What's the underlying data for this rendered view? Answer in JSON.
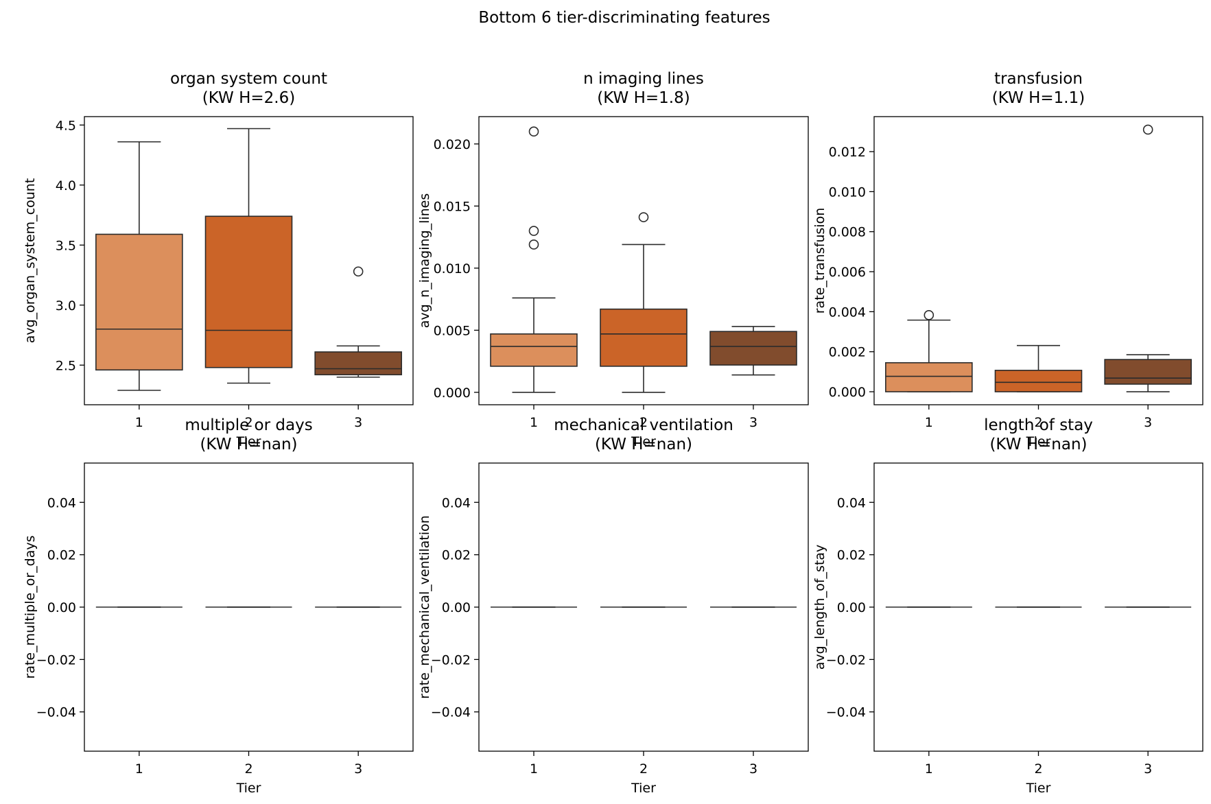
{
  "figure": {
    "suptitle": "Bottom 6 tier-discriminating features",
    "colors": {
      "tier_1": "#dc8f5c",
      "tier_2": "#cb6428",
      "tier_3": "#814c2d",
      "line": "#2b2b2b",
      "axes": "#000000"
    }
  },
  "chart_data": [
    {
      "type": "box",
      "title": "organ system count",
      "subtitle": "(KW H=2.6)",
      "xlabel": "Tier",
      "ylabel": "avg_organ_system_count",
      "categories": [
        "1",
        "2",
        "3"
      ],
      "ylim": [
        2.17,
        4.57
      ],
      "yticks": [
        2.5,
        3.0,
        3.5,
        4.0,
        4.5
      ],
      "ytick_labels": [
        "2.5",
        "3.0",
        "3.5",
        "4.0",
        "4.5"
      ],
      "boxes": [
        {
          "tier": "1",
          "whisker_low": 2.29,
          "q1": 2.46,
          "median": 2.8,
          "q3": 3.59,
          "whisker_high": 4.36,
          "outliers": []
        },
        {
          "tier": "2",
          "whisker_low": 2.35,
          "q1": 2.48,
          "median": 2.79,
          "q3": 3.74,
          "whisker_high": 4.47,
          "outliers": []
        },
        {
          "tier": "3",
          "whisker_low": 2.4,
          "q1": 2.42,
          "median": 2.47,
          "q3": 2.61,
          "whisker_high": 2.66,
          "outliers": [
            3.28
          ]
        }
      ]
    },
    {
      "type": "box",
      "title": "n imaging lines",
      "subtitle": "(KW H=1.8)",
      "xlabel": "Tier",
      "ylabel": "avg_n_imaging_lines",
      "categories": [
        "1",
        "2",
        "3"
      ],
      "ylim": [
        -0.001,
        0.0222
      ],
      "yticks": [
        0.0,
        0.005,
        0.01,
        0.015,
        0.02
      ],
      "ytick_labels": [
        "0.000",
        "0.005",
        "0.010",
        "0.015",
        "0.020"
      ],
      "boxes": [
        {
          "tier": "1",
          "whisker_low": 0.0,
          "q1": 0.0021,
          "median": 0.0037,
          "q3": 0.0047,
          "whisker_high": 0.0076,
          "outliers": [
            0.0119,
            0.013,
            0.021
          ]
        },
        {
          "tier": "2",
          "whisker_low": 0.0,
          "q1": 0.0021,
          "median": 0.0047,
          "q3": 0.0067,
          "whisker_high": 0.0119,
          "outliers": [
            0.0141
          ]
        },
        {
          "tier": "3",
          "whisker_low": 0.0014,
          "q1": 0.0022,
          "median": 0.0037,
          "q3": 0.0049,
          "whisker_high": 0.0053,
          "outliers": []
        }
      ]
    },
    {
      "type": "box",
      "title": "transfusion",
      "subtitle": "(KW H=1.1)",
      "xlabel": "Tier",
      "ylabel": "rate_transfusion",
      "categories": [
        "1",
        "2",
        "3"
      ],
      "ylim": [
        -0.00065,
        0.01375
      ],
      "yticks": [
        0.0,
        0.002,
        0.004,
        0.006,
        0.008,
        0.01,
        0.012
      ],
      "ytick_labels": [
        "0.000",
        "0.002",
        "0.004",
        "0.006",
        "0.008",
        "0.010",
        "0.012"
      ],
      "boxes": [
        {
          "tier": "1",
          "whisker_low": 0.0,
          "q1": 0.0,
          "median": 0.00077,
          "q3": 0.00145,
          "whisker_high": 0.00358,
          "outliers": [
            0.00383
          ]
        },
        {
          "tier": "2",
          "whisker_low": 0.0,
          "q1": 0.0,
          "median": 0.00047,
          "q3": 0.00107,
          "whisker_high": 0.00231,
          "outliers": []
        },
        {
          "tier": "3",
          "whisker_low": 0.0,
          "q1": 0.00038,
          "median": 0.00068,
          "q3": 0.00161,
          "whisker_high": 0.00185,
          "outliers": [
            0.0131
          ]
        }
      ]
    },
    {
      "type": "box",
      "title": "multiple or days",
      "subtitle": "(KW H=nan)",
      "xlabel": "Tier",
      "ylabel": "rate_multiple_or_days",
      "categories": [
        "1",
        "2",
        "3"
      ],
      "ylim": [
        -0.055,
        0.055
      ],
      "yticks": [
        -0.04,
        -0.02,
        0.0,
        0.02,
        0.04
      ],
      "ytick_labels": [
        "−0.04",
        "−0.02",
        "0.00",
        "0.02",
        "0.04"
      ],
      "boxes": [
        {
          "tier": "1",
          "whisker_low": 0,
          "q1": 0,
          "median": 0,
          "q3": 0,
          "whisker_high": 0,
          "outliers": []
        },
        {
          "tier": "2",
          "whisker_low": 0,
          "q1": 0,
          "median": 0,
          "q3": 0,
          "whisker_high": 0,
          "outliers": []
        },
        {
          "tier": "3",
          "whisker_low": 0,
          "q1": 0,
          "median": 0,
          "q3": 0,
          "whisker_high": 0,
          "outliers": []
        }
      ]
    },
    {
      "type": "box",
      "title": "mechanical ventilation",
      "subtitle": "(KW H=nan)",
      "xlabel": "Tier",
      "ylabel": "rate_mechanical_ventilation",
      "categories": [
        "1",
        "2",
        "3"
      ],
      "ylim": [
        -0.055,
        0.055
      ],
      "yticks": [
        -0.04,
        -0.02,
        0.0,
        0.02,
        0.04
      ],
      "ytick_labels": [
        "−0.04",
        "−0.02",
        "0.00",
        "0.02",
        "0.04"
      ],
      "boxes": [
        {
          "tier": "1",
          "whisker_low": 0,
          "q1": 0,
          "median": 0,
          "q3": 0,
          "whisker_high": 0,
          "outliers": []
        },
        {
          "tier": "2",
          "whisker_low": 0,
          "q1": 0,
          "median": 0,
          "q3": 0,
          "whisker_high": 0,
          "outliers": []
        },
        {
          "tier": "3",
          "whisker_low": 0,
          "q1": 0,
          "median": 0,
          "q3": 0,
          "whisker_high": 0,
          "outliers": []
        }
      ]
    },
    {
      "type": "box",
      "title": "length of stay",
      "subtitle": "(KW H=nan)",
      "xlabel": "Tier",
      "ylabel": "avg_length_of_stay",
      "categories": [
        "1",
        "2",
        "3"
      ],
      "ylim": [
        -0.055,
        0.055
      ],
      "yticks": [
        -0.04,
        -0.02,
        0.0,
        0.02,
        0.04
      ],
      "ytick_labels": [
        "−0.04",
        "−0.02",
        "0.00",
        "0.02",
        "0.04"
      ],
      "boxes": [
        {
          "tier": "1",
          "whisker_low": 0,
          "q1": 0,
          "median": 0,
          "q3": 0,
          "whisker_high": 0,
          "outliers": []
        },
        {
          "tier": "2",
          "whisker_low": 0,
          "q1": 0,
          "median": 0,
          "q3": 0,
          "whisker_high": 0,
          "outliers": []
        },
        {
          "tier": "3",
          "whisker_low": 0,
          "q1": 0,
          "median": 0,
          "q3": 0,
          "whisker_high": 0,
          "outliers": []
        }
      ]
    }
  ]
}
